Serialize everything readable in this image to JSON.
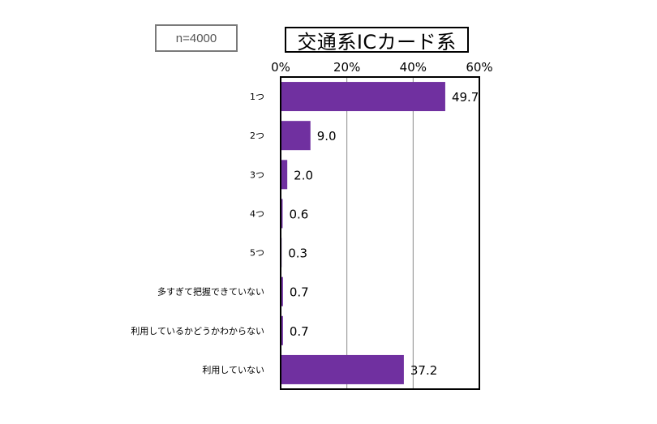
{
  "sample_label": "n=4000",
  "chart_data": {
    "type": "bar",
    "orientation": "horizontal",
    "title": "交通系ICカード系",
    "categories": [
      "1つ",
      "2つ",
      "3つ",
      "4つ",
      "5つ",
      "多すぎて把握できていない",
      "利用しているかどうかわからない",
      "利用していない"
    ],
    "values": [
      49.7,
      9.0,
      2.0,
      0.6,
      0.3,
      0.7,
      0.7,
      37.2
    ],
    "value_labels": [
      "49.7",
      "9.0",
      "2.0",
      "0.6",
      "0.3",
      "0.7",
      "0.7",
      "37.2"
    ],
    "xlim": [
      0,
      60
    ],
    "xticks": [
      0,
      20,
      40,
      60
    ],
    "xtick_labels": [
      "0%",
      "20%",
      "40%",
      "60%"
    ],
    "x_axis_position": "top",
    "grid": true,
    "legend": false,
    "bar_color": "#7030a0"
  }
}
